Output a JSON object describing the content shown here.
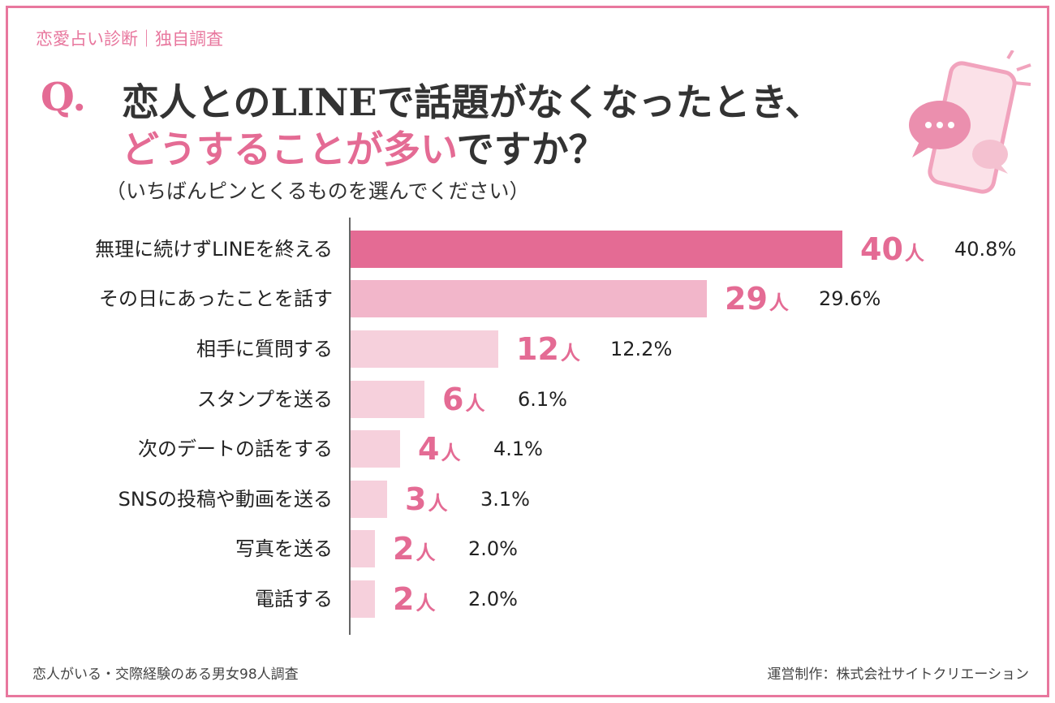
{
  "header": {
    "category": "恋愛占い診断｜独自調査",
    "q_mark": "Q.",
    "title_line1": "恋人とのLINEで話題がなくなったとき、",
    "title_line2_pink": "どうすることが多い",
    "title_line2_rest": "ですか？",
    "subtitle": "（いちばんピンとくるものを選んでください）"
  },
  "colors": {
    "accent": "#e46b94",
    "bar_top": "#e46b94",
    "bar_second": "#f2b6ca",
    "bar_rest": "#f6d0dc",
    "frame": "#e8779e"
  },
  "chart_data": {
    "type": "bar",
    "orientation": "horizontal",
    "categories": [
      "無理に続けずLINEを終える",
      "その日にあったことを話す",
      "相手に質問する",
      "スタンプを送る",
      "次のデートの話をする",
      "SNSの投稿や動画を送る",
      "写真を送る",
      "電話する"
    ],
    "values": [
      40,
      29,
      12,
      6,
      4,
      3,
      2,
      2
    ],
    "unit": "人",
    "percentages": [
      "40.8%",
      "29.6%",
      "12.2%",
      "6.1%",
      "4.1%",
      "3.1%",
      "2.0%",
      "2.0%"
    ],
    "xlim": [
      0,
      40
    ],
    "grid": false
  },
  "footer": {
    "left": "恋人がいる・交際経験のある男女98人調査",
    "right": "運営制作：株式会社サイトクリエーション"
  }
}
